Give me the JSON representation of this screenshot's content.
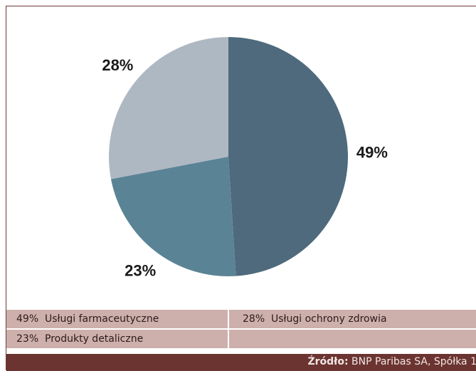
{
  "chart_data": {
    "type": "pie",
    "slices": [
      {
        "label": "Usługi farmaceutyczne",
        "value": 49,
        "value_label": "49%",
        "color": "#4e6a7c"
      },
      {
        "label": "Produkty detaliczne",
        "value": 23,
        "value_label": "23%",
        "color": "#5b8396"
      },
      {
        "label": "Usługi ochrony zdrowia",
        "value": 28,
        "value_label": "28%",
        "color": "#aeb8c3"
      }
    ],
    "legend_placement": "bottom"
  },
  "legend": {
    "rows": [
      [
        {
          "pct": "49%",
          "label": "Usługi farmaceutyczne"
        },
        {
          "pct": "28%",
          "label": "Usługi ochrony zdrowia"
        }
      ],
      [
        {
          "pct": "23%",
          "label": "Produkty detaliczne"
        }
      ]
    ]
  },
  "source": {
    "label": "Źródło:",
    "text": "BNP Paribas SA, Spółka 1"
  },
  "colors": {
    "legend_bg": "#cdb0ab",
    "footer_bg": "#6b3431",
    "frame_border": "#6e3a37"
  }
}
